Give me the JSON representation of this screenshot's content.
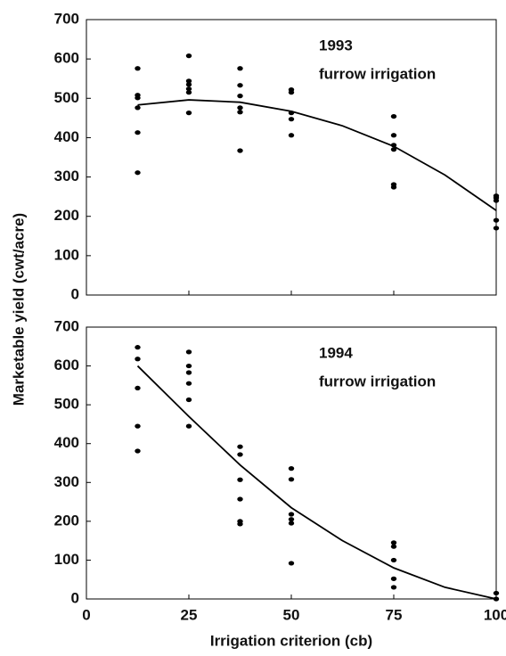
{
  "chart_data": [
    {
      "type": "scatter",
      "annotation": [
        "1993",
        "furrow irrigation"
      ],
      "ylabel": "Marketable yield (cwt/acre)",
      "xlim": [
        0,
        100
      ],
      "xticks": [
        0,
        25,
        50,
        75,
        100
      ],
      "ylim": [
        0,
        700
      ],
      "yticks": [
        0,
        100,
        200,
        300,
        400,
        500,
        600,
        700
      ],
      "color": "#000000",
      "points": {
        "x": [
          12.5,
          12.5,
          12.5,
          12.5,
          12.5,
          12.5,
          25,
          25,
          25,
          25,
          25,
          25,
          37.5,
          37.5,
          37.5,
          37.5,
          37.5,
          37.5,
          50,
          50,
          50,
          50,
          50,
          75,
          75,
          75,
          75,
          75,
          75,
          100,
          100,
          100,
          100,
          100
        ],
        "y": [
          576,
          508,
          501,
          476,
          413,
          311,
          608,
          544,
          535,
          524,
          515,
          463,
          576,
          533,
          506,
          476,
          465,
          367,
          522,
          515,
          463,
          447,
          406,
          454,
          406,
          381,
          370,
          281,
          274,
          252,
          247,
          240,
          190,
          170
        ]
      },
      "curve": {
        "x": [
          12.5,
          25,
          37.5,
          50,
          62.5,
          75,
          87.5,
          100
        ],
        "y": [
          483,
          496,
          490,
          467,
          430,
          378,
          305,
          215
        ]
      }
    },
    {
      "type": "scatter",
      "annotation": [
        "1994",
        "furrow irrigation"
      ],
      "xlabel": "Irrigation criterion (cb)",
      "xlim": [
        0,
        100
      ],
      "xticks": [
        0,
        25,
        50,
        75,
        100
      ],
      "ylim": [
        0,
        700
      ],
      "yticks": [
        0,
        100,
        200,
        300,
        400,
        500,
        600,
        700
      ],
      "color": "#000000",
      "points": {
        "x": [
          12.5,
          12.5,
          12.5,
          12.5,
          12.5,
          25,
          25,
          25,
          25,
          25,
          25,
          37.5,
          37.5,
          37.5,
          37.5,
          37.5,
          37.5,
          50,
          50,
          50,
          50,
          50,
          50,
          75,
          75,
          75,
          75,
          75,
          100,
          100
        ],
        "y": [
          648,
          618,
          543,
          445,
          381,
          636,
          600,
          583,
          555,
          513,
          445,
          392,
          372,
          307,
          257,
          200,
          193,
          336,
          308,
          218,
          205,
          195,
          92,
          145,
          135,
          100,
          52,
          30,
          15,
          0
        ]
      },
      "curve": {
        "x": [
          12.5,
          25,
          37.5,
          50,
          62.5,
          75,
          87.5,
          100
        ],
        "y": [
          600,
          470,
          345,
          235,
          150,
          80,
          30,
          0
        ]
      }
    }
  ]
}
